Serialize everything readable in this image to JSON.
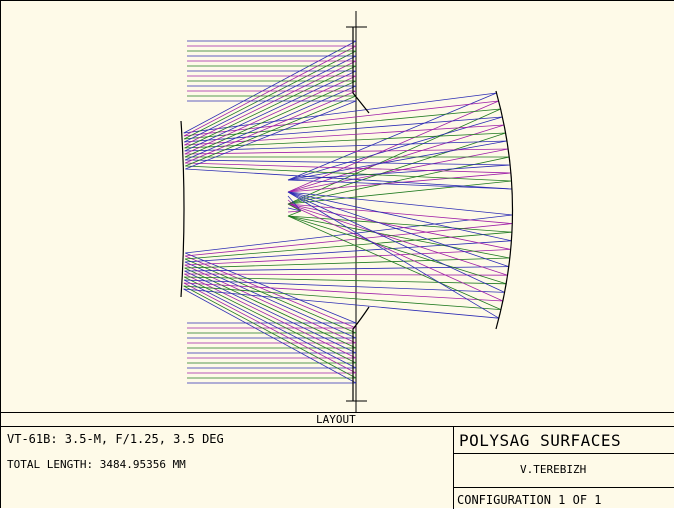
{
  "layout_label": "LAYOUT",
  "info": {
    "line1": "VT-61B:  3.5-M,  F/1.25,  3.5 DEG",
    "line2": "TOTAL LENGTH: 3484.95356 MM"
  },
  "title_block": {
    "title": "POLYSAG SURFACES",
    "author": "V.TEREBIZH",
    "configuration": "CONFIGURATION 1 OF 1"
  },
  "ray_colors": {
    "field1": "#2c2cb4",
    "field2": "#a020a8",
    "field3": "#207a20"
  }
}
